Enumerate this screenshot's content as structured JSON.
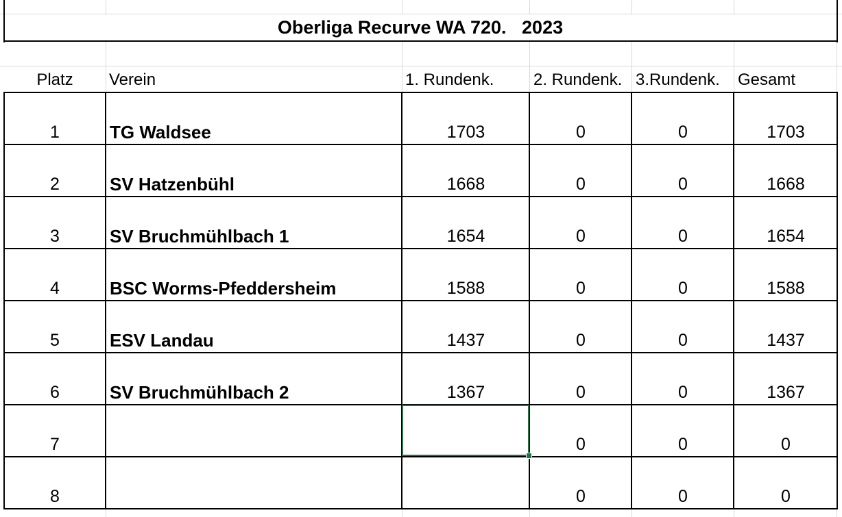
{
  "title": "Oberliga Recurve WA 720.   2023",
  "headers": {
    "platz": "Platz",
    "verein": "Verein",
    "r1": "1. Rundenk.",
    "r2": "2. Rundenk.",
    "r3": "3.Rundenk.",
    "gesamt": "Gesamt"
  },
  "rows": [
    {
      "platz": "1",
      "verein": "TG Waldsee",
      "r1": "1703",
      "r2": "0",
      "r3": "0",
      "gesamt": "1703"
    },
    {
      "platz": "2",
      "verein": "SV Hatzenbühl",
      "r1": "1668",
      "r2": "0",
      "r3": "0",
      "gesamt": "1668"
    },
    {
      "platz": "3",
      "verein": "SV Bruchmühlbach 1",
      "r1": "1654",
      "r2": "0",
      "r3": "0",
      "gesamt": "1654"
    },
    {
      "platz": "4",
      "verein": "BSC Worms-Pfeddersheim",
      "r1": "1588",
      "r2": "0",
      "r3": "0",
      "gesamt": "1588"
    },
    {
      "platz": "5",
      "verein": "ESV Landau",
      "r1": "1437",
      "r2": "0",
      "r3": "0",
      "gesamt": "1437"
    },
    {
      "platz": "6",
      "verein": "SV Bruchmühlbach 2",
      "r1": "1367",
      "r2": "0",
      "r3": "0",
      "gesamt": "1367"
    },
    {
      "platz": "7",
      "verein": "",
      "r1": "",
      "r2": "0",
      "r3": "0",
      "gesamt": "0"
    },
    {
      "platz": "8",
      "verein": "",
      "r1": "",
      "r2": "0",
      "r3": "0",
      "gesamt": "0"
    }
  ],
  "colors": {
    "gridline": "#d9d9d9",
    "selection": "#217346"
  }
}
